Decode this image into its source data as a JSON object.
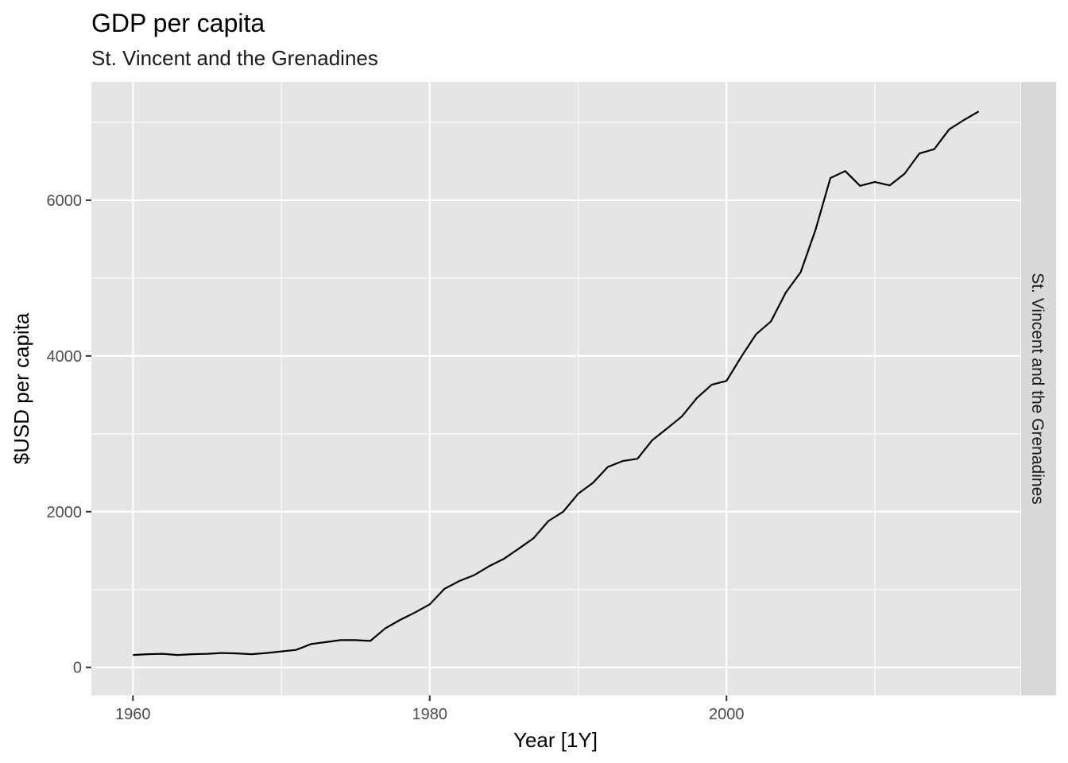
{
  "chart_data": {
    "type": "line",
    "title": "GDP per capita",
    "subtitle": "St. Vincent and the Grenadines",
    "xlabel": "Year [1Y]",
    "ylabel": "$USD per capita",
    "facet_label": "St. Vincent and the Grenadines",
    "xlim": [
      1957.2,
      2019.8
    ],
    "ylim": [
      -360,
      7520
    ],
    "x_ticks": [
      1960,
      1980,
      2000
    ],
    "x_minor_ticks": [
      1970,
      1990,
      2010
    ],
    "y_ticks": [
      0,
      2000,
      4000,
      6000
    ],
    "y_minor_ticks": [
      1000,
      3000,
      5000,
      7000
    ],
    "grid": true,
    "legend": "none",
    "colors": {
      "panel_background": "#e5e5e5",
      "grid": "#ffffff",
      "line": "#000000",
      "strip_background": "#d9d9d9"
    },
    "series": [
      {
        "x": [
          1960,
          1961,
          1962,
          1963,
          1964,
          1965,
          1966,
          1967,
          1968,
          1969,
          1970,
          1971,
          1972,
          1973,
          1974,
          1975,
          1976,
          1977,
          1978,
          1979,
          1980,
          1981,
          1982,
          1983,
          1984,
          1985,
          1986,
          1987,
          1988,
          1989,
          1990,
          1991,
          1992,
          1993,
          1994,
          1995,
          1996,
          1997,
          1998,
          1999,
          2000,
          2001,
          2002,
          2003,
          2004,
          2005,
          2006,
          2007,
          2008,
          2009,
          2010,
          2011,
          2012,
          2013,
          2014,
          2015,
          2016,
          2017
        ],
        "values": [
          160,
          170,
          175,
          160,
          170,
          175,
          185,
          180,
          170,
          185,
          205,
          225,
          300,
          325,
          350,
          350,
          340,
          500,
          610,
          705,
          810,
          1010,
          1110,
          1185,
          1300,
          1395,
          1525,
          1660,
          1880,
          2000,
          2230,
          2370,
          2575,
          2650,
          2680,
          2920,
          3070,
          3225,
          3460,
          3630,
          3680,
          3990,
          4280,
          4445,
          4815,
          5075,
          5620,
          6285,
          6375,
          6185,
          6235,
          6190,
          6340,
          6600,
          6655,
          6910,
          7030,
          7140
        ]
      }
    ]
  }
}
